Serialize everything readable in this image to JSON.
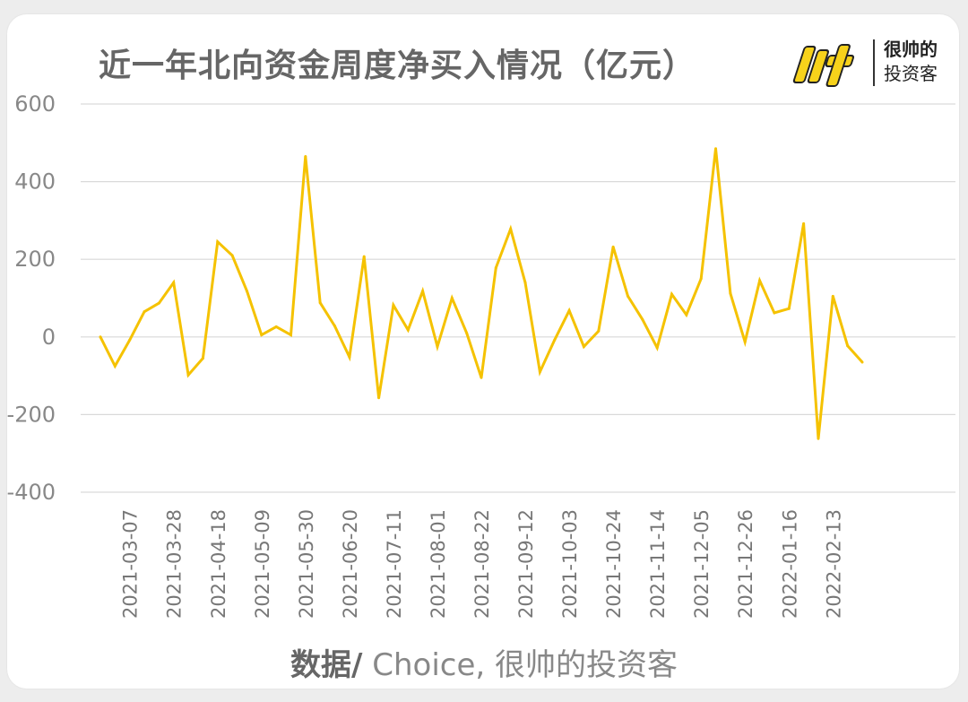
{
  "title": "近一年北向资金周度净买入情况（亿元）",
  "logo": {
    "mark": "帅",
    "line1": "很帅的",
    "line2": "投资客"
  },
  "source": {
    "bold": "数据/",
    "rest": " Choice, 很帅的投资客"
  },
  "colors": {
    "line": "#F5C200",
    "grid": "#d9d9d9",
    "text": "#888888",
    "logo": "#F7D21B"
  },
  "chart_data": {
    "type": "line",
    "title": "近一年北向资金周度净买入情况（亿元）",
    "xlabel": "",
    "ylabel": "",
    "ylim": [
      -400,
      600
    ],
    "yticks": [
      600,
      400,
      200,
      0,
      -200,
      -400
    ],
    "grid": true,
    "x_labels": [
      "2021-03-07",
      "2021-03-28",
      "2021-04-18",
      "2021-05-09",
      "2021-05-30",
      "2021-06-20",
      "2021-07-11",
      "2021-08-01",
      "2021-08-22",
      "2021-09-12",
      "2021-10-03",
      "2021-10-24",
      "2021-11-14",
      "2021-12-05",
      "2021-12-26",
      "2022-01-16",
      "2022-02-13"
    ],
    "values": [
      0,
      -75,
      -8,
      65,
      87,
      140,
      -98,
      -55,
      245,
      210,
      118,
      5,
      26,
      5,
      465,
      88,
      28,
      -52,
      207,
      -157,
      82,
      18,
      118,
      -25,
      100,
      10,
      -105,
      178,
      278,
      140,
      -90,
      -8,
      68,
      -25,
      15,
      232,
      105,
      45,
      -28,
      110,
      57,
      150,
      485,
      112,
      -13,
      145,
      62,
      73,
      292,
      -262,
      105,
      -23,
      -65
    ]
  }
}
